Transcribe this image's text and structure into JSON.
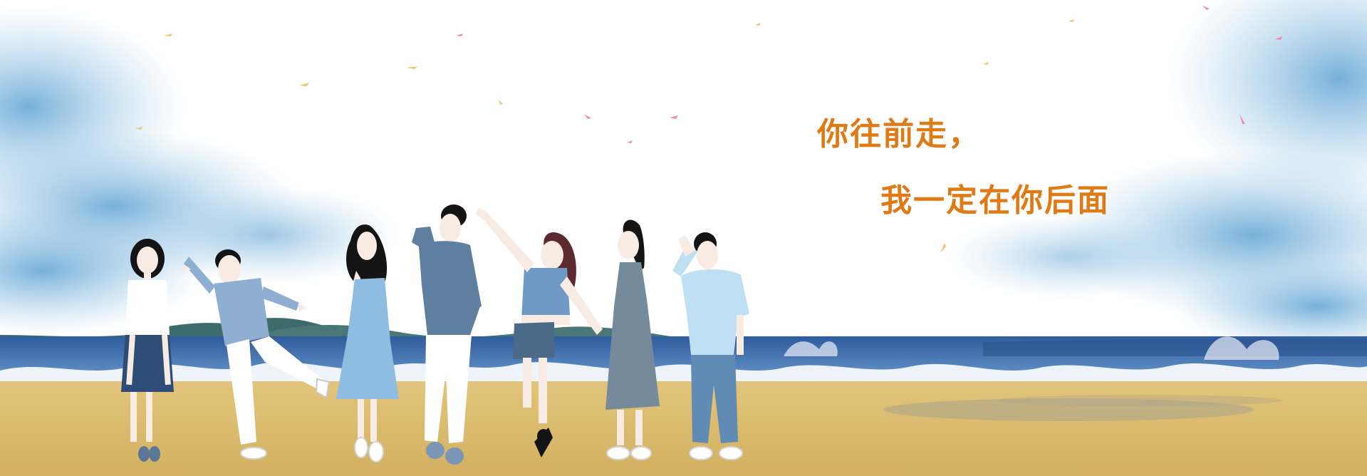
{
  "caption": {
    "line1": "你往前走，",
    "line2": "我一定在你后面"
  },
  "colors": {
    "caption": "#e07a14",
    "sky_blue": "#7fb6da",
    "sea_deep": "#3b67a8",
    "sea_light": "#6e9ed0",
    "sand": "#d9b96a",
    "mountain": "#3f6a6a",
    "skin": "#f7ebe4",
    "hair": "#141414"
  },
  "scene": {
    "elements": [
      "sky",
      "clouds",
      "mountains",
      "sea",
      "waves",
      "beach",
      "petals",
      "people"
    ],
    "people_count": 7
  }
}
